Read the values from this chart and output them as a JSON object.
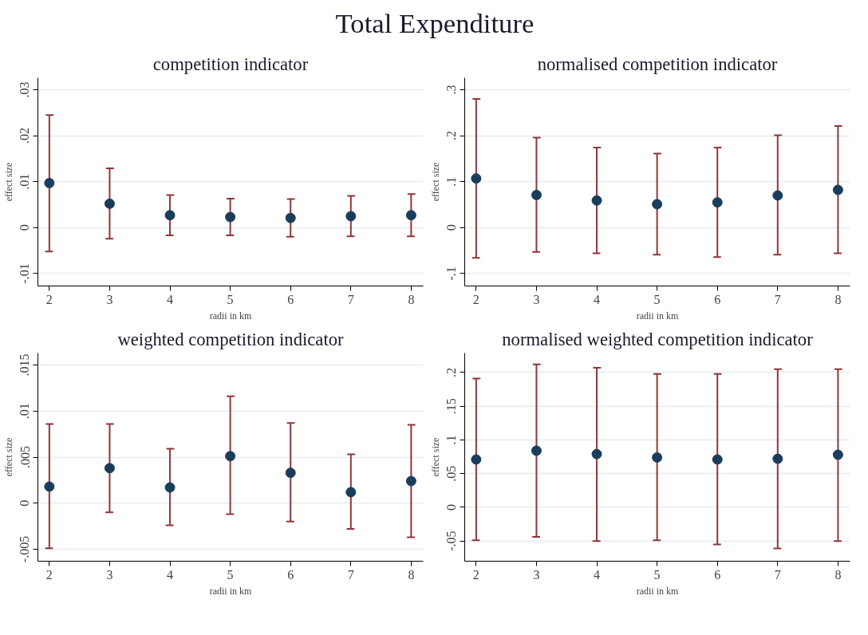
{
  "chart_data": [
    {
      "type": "other",
      "title": "Total Expenditure"
    },
    {
      "type": "scatter",
      "title": "competition indicator",
      "xlabel": "radii in km",
      "ylabel": "effect size",
      "x": [
        2,
        3,
        4,
        5,
        6,
        7,
        8
      ],
      "xlim": [
        1.81,
        8.2
      ],
      "xticks": [
        2,
        3,
        4,
        5,
        6,
        7,
        8
      ],
      "ylim": [
        -0.0127,
        0.0326
      ],
      "yticks": [
        {
          "value": -0.01,
          "label": "-.01"
        },
        0,
        {
          "value": 0.01,
          "label": ".01"
        },
        {
          "value": 0.02,
          "label": ".02"
        },
        {
          "value": 0.03,
          "label": ".03"
        }
      ],
      "grid": "y",
      "marker": "circle",
      "series": [
        {
          "color": "#1a3d5c",
          "values": [
            0.0097,
            0.0052,
            0.0027,
            0.0023,
            0.0021,
            0.0025,
            0.0027
          ],
          "errors": [
            [
              -0.0052,
              0.0245
            ],
            [
              -0.0024,
              0.0129
            ],
            [
              -0.0017,
              0.0071
            ],
            [
              -0.0017,
              0.0063
            ],
            [
              -0.002,
              0.0062
            ],
            [
              -0.0019,
              0.0069
            ],
            [
              -0.0019,
              0.0073
            ]
          ]
        }
      ]
    },
    {
      "type": "scatter",
      "title": "normalised competition indicator",
      "xlabel": "radii in km",
      "ylabel": "effect size",
      "x": [
        2,
        3,
        4,
        5,
        6,
        7,
        8
      ],
      "xlim": [
        1.81,
        8.2
      ],
      "xticks": [
        2,
        3,
        4,
        5,
        6,
        7,
        8
      ],
      "ylim": [
        -0.127,
        0.326
      ],
      "yticks": [
        {
          "value": -0.1,
          "label": "-.1"
        },
        0,
        {
          "value": 0.1,
          "label": ".1"
        },
        {
          "value": 0.2,
          "label": ".2"
        },
        {
          "value": 0.3,
          "label": ".3"
        }
      ],
      "grid": "y",
      "marker": "circle",
      "series": [
        {
          "color": "#1a3d5c",
          "values": [
            0.107,
            0.071,
            0.059,
            0.051,
            0.055,
            0.07,
            0.082
          ],
          "errors": [
            [
              -0.066,
              0.28
            ],
            [
              -0.053,
              0.196
            ],
            [
              -0.056,
              0.174
            ],
            [
              -0.059,
              0.161
            ],
            [
              -0.064,
              0.174
            ],
            [
              -0.059,
              0.201
            ],
            [
              -0.056,
              0.221
            ]
          ]
        }
      ]
    },
    {
      "type": "scatter",
      "title": "weighted competition indicator",
      "xlabel": "radii in km",
      "ylabel": "effect size",
      "x": [
        2,
        3,
        4,
        5,
        6,
        7,
        8
      ],
      "xlim": [
        1.81,
        8.2
      ],
      "xticks": [
        2,
        3,
        4,
        5,
        6,
        7,
        8
      ],
      "ylim": [
        -0.0063,
        0.0163
      ],
      "yticks": [
        {
          "value": -0.005,
          "label": "-.005"
        },
        0,
        {
          "value": 0.005,
          "label": ".005"
        },
        {
          "value": 0.01,
          "label": ".01"
        },
        {
          "value": 0.015,
          "label": ".015"
        }
      ],
      "grid": "y",
      "marker": "circle",
      "series": [
        {
          "color": "#1a3d5c",
          "values": [
            0.0018,
            0.0038,
            0.0017,
            0.0051,
            0.0033,
            0.0012,
            0.0024
          ],
          "errors": [
            [
              -0.0049,
              0.0086
            ],
            [
              -0.001,
              0.0086
            ],
            [
              -0.0024,
              0.0059
            ],
            [
              -0.0012,
              0.0116
            ],
            [
              -0.002,
              0.0087
            ],
            [
              -0.0028,
              0.0053
            ],
            [
              -0.0037,
              0.0085
            ]
          ]
        }
      ]
    },
    {
      "type": "scatter",
      "title": "normalised weighted competition indicator",
      "xlabel": "radii in km",
      "ylabel": "effect size",
      "x": [
        2,
        3,
        4,
        5,
        6,
        7,
        8
      ],
      "xlim": [
        1.81,
        8.2
      ],
      "xticks": [
        2,
        3,
        4,
        5,
        6,
        7,
        8
      ],
      "ylim": [
        -0.08,
        0.229
      ],
      "yticks": [
        {
          "value": -0.05,
          "label": "-.05"
        },
        0,
        {
          "value": 0.05,
          "label": ".05"
        },
        {
          "value": 0.1,
          "label": ".1"
        },
        {
          "value": 0.15,
          "label": ".15"
        },
        {
          "value": 0.2,
          "label": ".2"
        }
      ],
      "grid": "y",
      "marker": "circle",
      "series": [
        {
          "color": "#1a3d5c",
          "values": [
            0.071,
            0.084,
            0.079,
            0.074,
            0.071,
            0.072,
            0.078
          ],
          "errors": [
            [
              -0.049,
              0.191
            ],
            [
              -0.044,
              0.212
            ],
            [
              -0.05,
              0.207
            ],
            [
              -0.049,
              0.198
            ],
            [
              -0.055,
              0.198
            ],
            [
              -0.061,
              0.205
            ],
            [
              -0.05,
              0.205
            ]
          ]
        }
      ]
    }
  ]
}
